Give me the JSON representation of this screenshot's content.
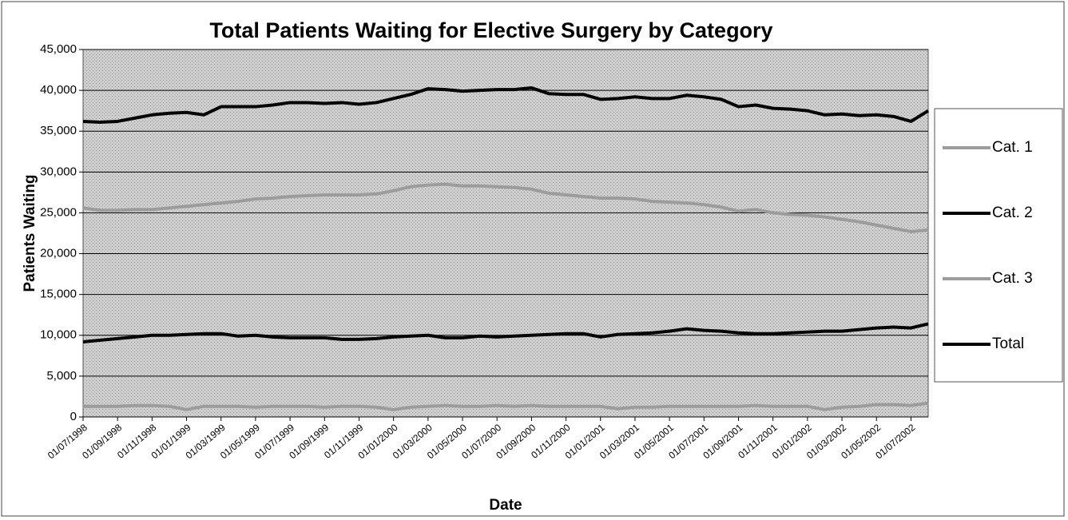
{
  "chart_data": {
    "type": "line",
    "title": "Total Patients Waiting for Elective Surgery by Category",
    "x_label": "Date",
    "y_label": "Patients Waiting",
    "categories": [
      "01/07/1998",
      null,
      "01/09/1998",
      null,
      "01/11/1998",
      null,
      "01/01/1999",
      null,
      "01/03/1999",
      null,
      "01/05/1999",
      null,
      "01/07/1999",
      null,
      "01/09/1999",
      null,
      "01/11/1999",
      null,
      "01/01/2000",
      null,
      "01/03/2000",
      null,
      "01/05/2000",
      null,
      "01/07/2000",
      null,
      "01/09/2000",
      null,
      "01/11/2000",
      null,
      "01/01/2001",
      null,
      "01/03/2001",
      null,
      "01/05/2001",
      null,
      "01/07/2001",
      null,
      "01/09/2001",
      null,
      "01/11/2001",
      null,
      "01/01/2002",
      null,
      "01/03/2002",
      null,
      "01/05/2002",
      null,
      "01/07/2002",
      null
    ],
    "series": [
      {
        "name": "Cat. 1",
        "color": "#9c9c9c",
        "values": [
          25600,
          25300,
          25300,
          25400,
          25400,
          25600,
          25800,
          26000,
          26200,
          26400,
          26700,
          26800,
          27000,
          27100,
          27200,
          27200,
          27200,
          27300,
          27700,
          28200,
          28400,
          28500,
          28300,
          28300,
          28200,
          28100,
          27900,
          27400,
          27200,
          27000,
          26800,
          26800,
          26700,
          26400,
          26300,
          26200,
          26000,
          25700,
          25200,
          25400,
          25000,
          24800,
          24700,
          24500,
          24200,
          23900,
          23500,
          23100,
          22700,
          22900
        ]
      },
      {
        "name": "Cat. 2",
        "color": "#000000",
        "values": [
          9200,
          9400,
          9600,
          9800,
          10000,
          10000,
          10100,
          10200,
          10200,
          9900,
          10000,
          9800,
          9700,
          9700,
          9700,
          9500,
          9500,
          9600,
          9800,
          9900,
          10000,
          9700,
          9700,
          9900,
          9800,
          9900,
          10000,
          10100,
          10200,
          10200,
          9800,
          10100,
          10200,
          10300,
          10500,
          10800,
          10600,
          10500,
          10300,
          10200,
          10200,
          10300,
          10400,
          10500,
          10500,
          10700,
          10900,
          11000,
          10900,
          11400
        ]
      },
      {
        "name": "Cat. 3",
        "color": "#9c9c9c",
        "values": [
          1300,
          1300,
          1300,
          1400,
          1400,
          1300,
          900,
          1300,
          1300,
          1300,
          1200,
          1300,
          1300,
          1300,
          1200,
          1300,
          1300,
          1200,
          900,
          1200,
          1300,
          1400,
          1300,
          1300,
          1400,
          1300,
          1400,
          1300,
          1300,
          1300,
          1300,
          1000,
          1200,
          1200,
          1300,
          1300,
          1300,
          1300,
          1300,
          1400,
          1300,
          1300,
          1300,
          900,
          1200,
          1300,
          1500,
          1500,
          1400,
          1700
        ]
      },
      {
        "name": "Total",
        "color": "#000000",
        "values": [
          36200,
          36100,
          36200,
          36600,
          37000,
          37200,
          37300,
          37000,
          38000,
          38000,
          38000,
          38200,
          38500,
          38500,
          38400,
          38500,
          38300,
          38500,
          39000,
          39500,
          40200,
          40100,
          39900,
          40000,
          40100,
          40100,
          40300,
          39600,
          39500,
          39500,
          38900,
          39000,
          39200,
          39000,
          39000,
          39400,
          39200,
          38900,
          38000,
          38200,
          37800,
          37700,
          37500,
          37000,
          37100,
          36900,
          37000,
          36800,
          36200,
          37500
        ]
      }
    ],
    "ylim": [
      0,
      45000
    ],
    "yticks": [
      0,
      {
        "value": 5000,
        "label": "5,000"
      },
      {
        "value": 10000,
        "label": "10,000"
      },
      {
        "value": 15000,
        "label": "15,000"
      },
      {
        "value": 20000,
        "label": "20,000"
      },
      {
        "value": 25000,
        "label": "25,000"
      },
      {
        "value": 30000,
        "label": "30,000"
      },
      {
        "value": 35000,
        "label": "35,000"
      },
      {
        "value": 40000,
        "label": "40,000"
      },
      {
        "value": 45000,
        "label": "45,000"
      }
    ],
    "grid": true,
    "legend": "right"
  }
}
